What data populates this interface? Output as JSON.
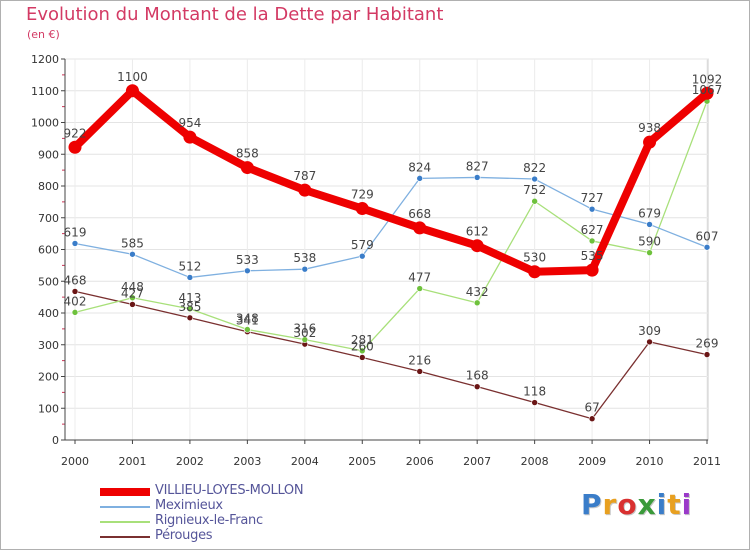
{
  "title": "Evolution du Montant de la Dette par Habitant",
  "subtitle": "(en €)",
  "logo": {
    "text": "Proxiti",
    "colors": [
      "#3a7dc9",
      "#e8a020",
      "#d93030",
      "#3a9a3a",
      "#3a7dc9",
      "#e8a020",
      "#9a3ac9"
    ]
  },
  "chart_data": {
    "type": "line",
    "title": "Evolution du Montant de la Dette par Habitant",
    "ylabel": "(en €)",
    "xlabel": "",
    "ylim": [
      0,
      1200
    ],
    "yticks": [
      0,
      100,
      200,
      300,
      400,
      500,
      600,
      700,
      800,
      900,
      1000,
      1100,
      1200
    ],
    "grid": true,
    "legend_position": "bottom-left",
    "categories": [
      "2000",
      "2001",
      "2002",
      "2003",
      "2004",
      "2005",
      "2006",
      "2007",
      "2008",
      "2009",
      "2010",
      "2011"
    ],
    "series": [
      {
        "name": "VILLIEU-LOYES-MOLLON",
        "color": "#ee0000",
        "dot": "#ee0000",
        "width": 8,
        "values": [
          922,
          1100,
          954,
          858,
          787,
          729,
          668,
          612,
          530,
          535,
          938,
          1092
        ]
      },
      {
        "name": "Meximieux",
        "color": "#7fb0e0",
        "dot": "#3a7dc9",
        "width": 1.3,
        "values": [
          619,
          585,
          512,
          533,
          538,
          579,
          824,
          827,
          822,
          727,
          679,
          607
        ]
      },
      {
        "name": "Rignieux-le-Franc",
        "color": "#a8e07a",
        "dot": "#6ec13c",
        "width": 1.3,
        "values": [
          402,
          448,
          413,
          348,
          316,
          281,
          477,
          432,
          752,
          627,
          590,
          1067
        ]
      },
      {
        "name": "Pérouges",
        "color": "#7a3030",
        "dot": "#6a1515",
        "width": 1.3,
        "values": [
          468,
          427,
          385,
          341,
          302,
          260,
          216,
          168,
          118,
          67,
          309,
          269
        ]
      }
    ],
    "data_labels": [
      [
        "922",
        "1100",
        "954",
        "858",
        "787",
        "729",
        "668",
        "612",
        "530",
        "535",
        "938",
        "1092"
      ],
      [
        "619",
        "585",
        "512",
        "533",
        "538",
        "579",
        "824",
        "827",
        "822",
        "727",
        "679",
        "607"
      ],
      [
        "402",
        "448",
        "413",
        "348",
        "316",
        "281",
        "477",
        "432",
        "752",
        "627",
        "590",
        "1067"
      ],
      [
        "468",
        "427",
        "385",
        "341",
        "302",
        "260",
        "216",
        "168",
        "118",
        "67",
        "309",
        "269"
      ]
    ]
  }
}
